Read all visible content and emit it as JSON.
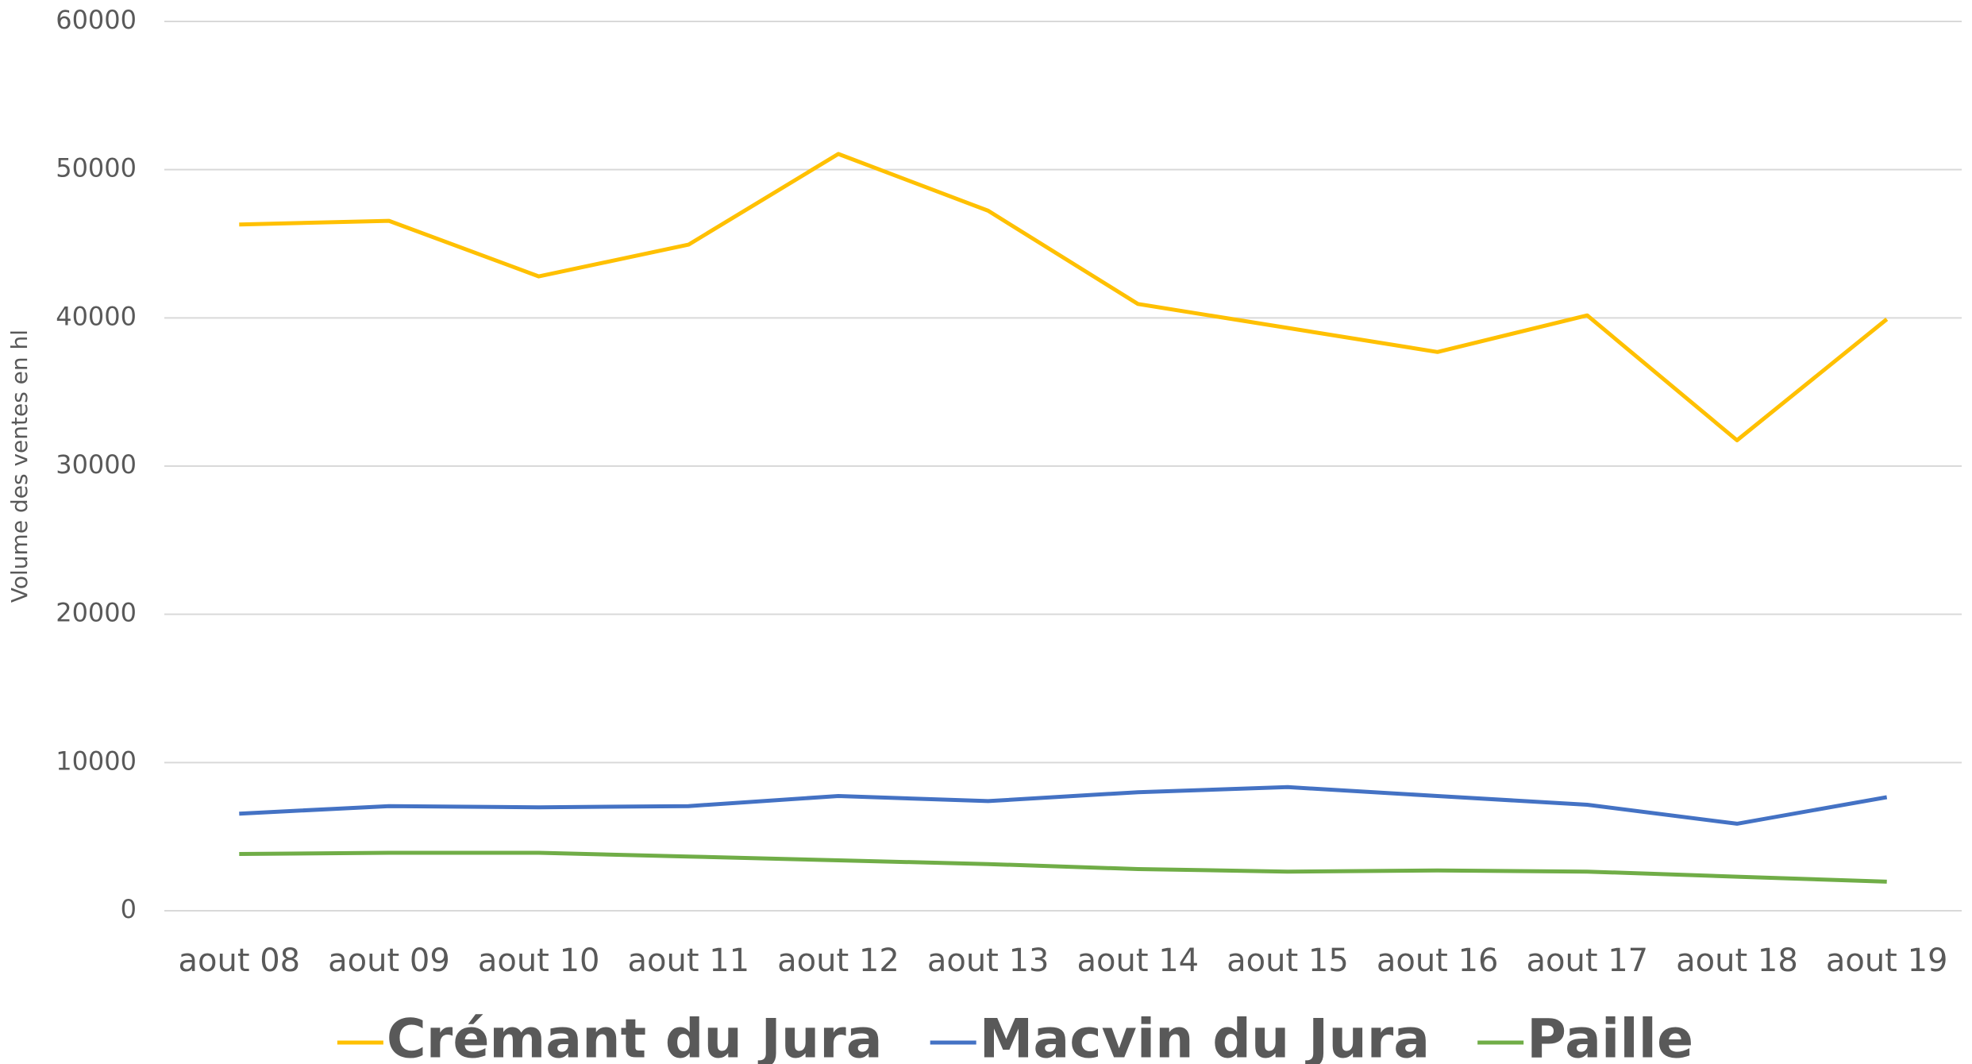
{
  "chart_data": {
    "type": "line",
    "y_label": "Volume des ventes en hl",
    "categories": [
      "aout 08",
      "aout 09",
      "aout 10",
      "aout 11",
      "aout 12",
      "aout 13",
      "aout 14",
      "aout 15",
      "aout 16",
      "aout 17",
      "aout 18",
      "aout 19"
    ],
    "series": [
      {
        "name": "Crémant du Jura",
        "color": "#FFC000",
        "values": [
          46300,
          46550,
          42800,
          44940,
          51060,
          47230,
          40940,
          39320,
          37700,
          40170,
          31740,
          39910
        ]
      },
      {
        "name": "Macvin du Jura",
        "color": "#4472C4",
        "values": [
          6550,
          7060,
          6980,
          7060,
          7740,
          7400,
          8000,
          8340,
          7740,
          7150,
          5870,
          7660
        ]
      },
      {
        "name": "Paille",
        "color": "#70AD47",
        "values": [
          3830,
          3910,
          3910,
          3660,
          3400,
          3150,
          2810,
          2640,
          2720,
          2640,
          2300,
          1960
        ]
      }
    ],
    "ylim": [
      0,
      60000
    ],
    "yticks": [
      0,
      10000,
      20000,
      30000,
      40000,
      50000,
      60000
    ],
    "grid": true,
    "legend": "bottom"
  }
}
